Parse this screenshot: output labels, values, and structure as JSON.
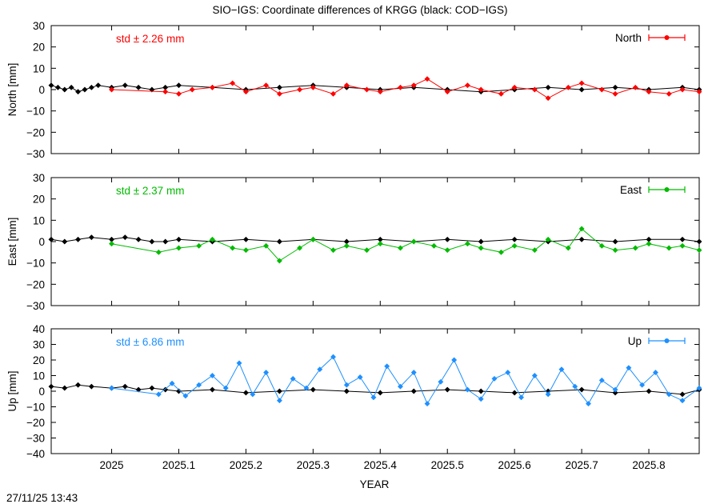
{
  "title": "SIO−IGS: Coordinate differences of KRGG (black: COD−IGS)",
  "timestamp": "27/11/25 13:43",
  "colors": {
    "axis": "#000000",
    "background": "#ffffff",
    "reference": "#000000"
  },
  "chart_data": {
    "type": "line",
    "xlabel": "YEAR",
    "xlim": [
      2024.91,
      2025.875
    ],
    "xticks": [
      "2025",
      "2025.1",
      "2025.2",
      "2025.3",
      "2025.4",
      "2025.5",
      "2025.6",
      "2025.7",
      "2025.8"
    ],
    "grid": false,
    "panels": [
      {
        "name": "North",
        "ylabel": "North [mm]",
        "ylim": [
          -30,
          30
        ],
        "yticks": [
          "30",
          "20",
          "10",
          "0",
          "−10",
          "−20",
          "−30"
        ],
        "std_label": "std ± 2.26 mm",
        "legend_label": "North",
        "legend_position": "top-right",
        "color": "#ff0000",
        "series": [
          {
            "name": "COD−IGS",
            "color": "#000000",
            "x": [
              2024.91,
              2024.92,
              2024.93,
              2024.94,
              2024.95,
              2024.96,
              2024.97,
              2024.98,
              2025.0,
              2025.02,
              2025.04,
              2025.06,
              2025.08,
              2025.1,
              2025.15,
              2025.2,
              2025.25,
              2025.3,
              2025.35,
              2025.4,
              2025.45,
              2025.5,
              2025.55,
              2025.6,
              2025.65,
              2025.7,
              2025.75,
              2025.8,
              2025.85,
              2025.875
            ],
            "y": [
              2,
              1,
              0,
              1,
              -1,
              0,
              1,
              2,
              1,
              2,
              1,
              0,
              1,
              2,
              1,
              0,
              1,
              2,
              1,
              0,
              1,
              0,
              -1,
              0,
              1,
              0,
              1,
              0,
              1,
              0
            ]
          },
          {
            "name": "SIO−IGS",
            "color": "#ff0000",
            "x": [
              2025.0,
              2025.08,
              2025.1,
              2025.12,
              2025.15,
              2025.18,
              2025.2,
              2025.23,
              2025.25,
              2025.28,
              2025.3,
              2025.33,
              2025.35,
              2025.38,
              2025.4,
              2025.43,
              2025.45,
              2025.47,
              2025.5,
              2025.53,
              2025.55,
              2025.58,
              2025.6,
              2025.63,
              2025.65,
              2025.68,
              2025.7,
              2025.73,
              2025.75,
              2025.78,
              2025.8,
              2025.83,
              2025.85,
              2025.875
            ],
            "y": [
              0,
              -1,
              -2,
              0,
              1,
              3,
              -1,
              2,
              -2,
              0,
              1,
              -2,
              2,
              0,
              -1,
              1,
              2,
              5,
              -1,
              2,
              0,
              -2,
              1,
              0,
              -4,
              1,
              3,
              0,
              -2,
              1,
              -1,
              -2,
              0,
              -1
            ]
          }
        ]
      },
      {
        "name": "East",
        "ylabel": "East [mm]",
        "ylim": [
          -30,
          30
        ],
        "yticks": [
          "30",
          "20",
          "10",
          "0",
          "−10",
          "−20",
          "−30"
        ],
        "std_label": "std ± 2.37 mm",
        "legend_label": "East",
        "legend_position": "top-right",
        "color": "#00bb00",
        "series": [
          {
            "name": "COD−IGS",
            "color": "#000000",
            "x": [
              2024.91,
              2024.93,
              2024.95,
              2024.97,
              2025.0,
              2025.02,
              2025.04,
              2025.06,
              2025.08,
              2025.1,
              2025.15,
              2025.2,
              2025.25,
              2025.3,
              2025.35,
              2025.4,
              2025.45,
              2025.5,
              2025.55,
              2025.6,
              2025.65,
              2025.7,
              2025.75,
              2025.8,
              2025.85,
              2025.875
            ],
            "y": [
              1,
              0,
              1,
              2,
              1,
              2,
              1,
              0,
              0,
              1,
              0,
              1,
              0,
              1,
              0,
              1,
              0,
              1,
              0,
              1,
              0,
              1,
              0,
              1,
              1,
              0
            ]
          },
          {
            "name": "SIO−IGS",
            "color": "#00bb00",
            "x": [
              2025.0,
              2025.07,
              2025.1,
              2025.13,
              2025.15,
              2025.18,
              2025.2,
              2025.23,
              2025.25,
              2025.28,
              2025.3,
              2025.33,
              2025.35,
              2025.38,
              2025.4,
              2025.43,
              2025.45,
              2025.48,
              2025.5,
              2025.53,
              2025.55,
              2025.58,
              2025.6,
              2025.63,
              2025.65,
              2025.68,
              2025.7,
              2025.73,
              2025.75,
              2025.78,
              2025.8,
              2025.83,
              2025.85,
              2025.875
            ],
            "y": [
              -1,
              -5,
              -3,
              -2,
              1,
              -3,
              -4,
              -2,
              -9,
              -3,
              1,
              -4,
              -2,
              -4,
              -1,
              -3,
              0,
              -2,
              -4,
              -1,
              -3,
              -5,
              -2,
              -4,
              1,
              -3,
              6,
              -2,
              -4,
              -3,
              -1,
              -3,
              -2,
              -4
            ]
          }
        ]
      },
      {
        "name": "Up",
        "ylabel": "Up [mm]",
        "ylim": [
          -40,
          40
        ],
        "yticks": [
          "40",
          "30",
          "20",
          "10",
          "0",
          "−10",
          "−20",
          "−30",
          "−40"
        ],
        "std_label": "std ± 6.86 mm",
        "legend_label": "Up",
        "legend_position": "top-right",
        "color": "#1e90ff",
        "series": [
          {
            "name": "COD−IGS",
            "color": "#000000",
            "x": [
              2024.91,
              2024.93,
              2024.95,
              2024.97,
              2025.0,
              2025.02,
              2025.04,
              2025.06,
              2025.08,
              2025.1,
              2025.15,
              2025.2,
              2025.25,
              2025.3,
              2025.35,
              2025.4,
              2025.45,
              2025.5,
              2025.55,
              2025.6,
              2025.65,
              2025.7,
              2025.75,
              2025.8,
              2025.85,
              2025.875
            ],
            "y": [
              3,
              2,
              4,
              3,
              2,
              3,
              1,
              2,
              1,
              0,
              1,
              -1,
              0,
              1,
              0,
              -1,
              0,
              1,
              0,
              -1,
              0,
              1,
              -1,
              0,
              -2,
              1
            ]
          },
          {
            "name": "SIO−IGS",
            "color": "#1e90ff",
            "x": [
              2025.0,
              2025.07,
              2025.09,
              2025.11,
              2025.13,
              2025.15,
              2025.17,
              2025.19,
              2025.21,
              2025.23,
              2025.25,
              2025.27,
              2025.29,
              2025.31,
              2025.33,
              2025.35,
              2025.37,
              2025.39,
              2025.41,
              2025.43,
              2025.45,
              2025.47,
              2025.49,
              2025.51,
              2025.53,
              2025.55,
              2025.57,
              2025.59,
              2025.61,
              2025.63,
              2025.65,
              2025.67,
              2025.69,
              2025.71,
              2025.73,
              2025.75,
              2025.77,
              2025.79,
              2025.81,
              2025.83,
              2025.85,
              2025.875
            ],
            "y": [
              2,
              -2,
              5,
              -3,
              4,
              10,
              2,
              18,
              -2,
              12,
              -6,
              8,
              2,
              14,
              22,
              4,
              9,
              -4,
              16,
              3,
              12,
              -8,
              6,
              20,
              1,
              -5,
              8,
              12,
              -4,
              10,
              -2,
              14,
              3,
              -8,
              7,
              1,
              15,
              4,
              12,
              -2,
              -6,
              2
            ]
          }
        ]
      }
    ]
  }
}
